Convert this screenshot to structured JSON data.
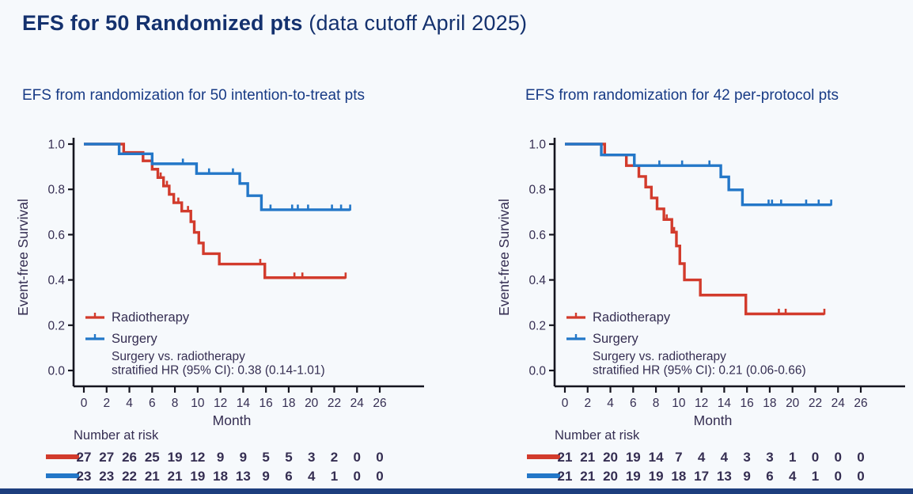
{
  "page": {
    "title_main": "EFS for 50 Randomized pts",
    "title_suffix": " (data cutoff April 2025)",
    "background_color": "#f6f9fc",
    "footer_bar_color": "#1d3e7e"
  },
  "colors": {
    "red": "#d23b2c",
    "blue": "#2377c8",
    "title_navy": "#14316e",
    "subtitle_navy": "#173a85",
    "plot_text": "#352e52",
    "axis": "#15151f"
  },
  "chart_data": [
    {
      "type": "line",
      "subtype": "kaplan-meier-step",
      "title": "EFS from randomization for 50 intention-to-treat pts",
      "xlabel": "Month",
      "ylabel": "Event-free Survival",
      "xlim": [
        0,
        26
      ],
      "ylim": [
        0.0,
        1.0
      ],
      "xticks": [
        0,
        2,
        4,
        6,
        8,
        10,
        12,
        14,
        16,
        18,
        20,
        22,
        24,
        26
      ],
      "yticks": [
        0.0,
        0.2,
        0.4,
        0.6,
        0.8,
        1.0
      ],
      "grid": false,
      "legend_position": "lower-left-inside",
      "legend": [
        {
          "name": "Radiotherapy",
          "color_key": "red"
        },
        {
          "name": "Surgery",
          "color_key": "blue"
        }
      ],
      "annotation_lines": [
        "Surgery vs. radiotherapy",
        "stratified HR (95% CI): 0.38 (0.14-1.01)"
      ],
      "series": [
        {
          "name": "Radiotherapy",
          "color_key": "red",
          "steps": [
            [
              0,
              1.0
            ],
            [
              3.5,
              0.963
            ],
            [
              5.2,
              0.926
            ],
            [
              6.0,
              0.889
            ],
            [
              6.5,
              0.852
            ],
            [
              7.0,
              0.815
            ],
            [
              7.5,
              0.778
            ],
            [
              7.9,
              0.741
            ],
            [
              8.6,
              0.704
            ],
            [
              9.4,
              0.657
            ],
            [
              9.7,
              0.61
            ],
            [
              10.1,
              0.563
            ],
            [
              10.5,
              0.516
            ],
            [
              11.9,
              0.47
            ],
            [
              15.9,
              0.41
            ]
          ],
          "end_month": 23.0,
          "censors": [
            [
              6.75,
              0.852
            ],
            [
              7.3,
              0.815
            ],
            [
              8.3,
              0.741
            ],
            [
              9.15,
              0.704
            ],
            [
              15.5,
              0.47
            ],
            [
              18.5,
              0.41
            ],
            [
              19.2,
              0.41
            ],
            [
              23.0,
              0.41
            ]
          ]
        },
        {
          "name": "Surgery",
          "color_key": "blue",
          "steps": [
            [
              0,
              1.0
            ],
            [
              3.1,
              0.957
            ],
            [
              6.0,
              0.913
            ],
            [
              9.9,
              0.87
            ],
            [
              13.7,
              0.826
            ],
            [
              14.4,
              0.772
            ],
            [
              15.6,
              0.71
            ]
          ],
          "end_month": 23.4,
          "censors": [
            [
              8.7,
              0.913
            ],
            [
              11.0,
              0.87
            ],
            [
              13.1,
              0.87
            ],
            [
              16.4,
              0.71
            ],
            [
              18.3,
              0.71
            ],
            [
              18.8,
              0.71
            ],
            [
              19.7,
              0.71
            ],
            [
              21.8,
              0.71
            ],
            [
              22.6,
              0.71
            ],
            [
              23.4,
              0.71
            ]
          ]
        }
      ],
      "number_at_risk": {
        "label": "Number at risk",
        "months": [
          0,
          2,
          4,
          6,
          8,
          10,
          12,
          14,
          16,
          18,
          20,
          22,
          24,
          26
        ],
        "rows": [
          {
            "name": "Radiotherapy",
            "color_key": "red",
            "values": [
              27,
              27,
              26,
              25,
              19,
              12,
              9,
              9,
              5,
              5,
              3,
              2,
              0,
              0
            ]
          },
          {
            "name": "Surgery",
            "color_key": "blue",
            "values": [
              23,
              23,
              22,
              21,
              21,
              19,
              18,
              13,
              9,
              6,
              4,
              1,
              0,
              0
            ]
          }
        ]
      }
    },
    {
      "type": "line",
      "subtype": "kaplan-meier-step",
      "title": "EFS from randomization for 42 per-protocol pts",
      "xlabel": "Month",
      "ylabel": "Event-free Survival",
      "xlim": [
        0,
        26
      ],
      "ylim": [
        0.0,
        1.0
      ],
      "xticks": [
        0,
        2,
        4,
        6,
        8,
        10,
        12,
        14,
        16,
        18,
        20,
        22,
        24,
        26
      ],
      "yticks": [
        0.0,
        0.2,
        0.4,
        0.6,
        0.8,
        1.0
      ],
      "grid": false,
      "legend_position": "lower-left-inside",
      "legend": [
        {
          "name": "Radiotherapy",
          "color_key": "red"
        },
        {
          "name": "Surgery",
          "color_key": "blue"
        }
      ],
      "annotation_lines": [
        "Surgery vs. radiotherapy",
        "stratified HR (95% CI): 0.21 (0.06-0.66)"
      ],
      "series": [
        {
          "name": "Radiotherapy",
          "color_key": "red",
          "steps": [
            [
              0,
              1.0
            ],
            [
              3.5,
              0.952
            ],
            [
              5.4,
              0.905
            ],
            [
              6.5,
              0.857
            ],
            [
              7.1,
              0.81
            ],
            [
              7.6,
              0.762
            ],
            [
              8.1,
              0.714
            ],
            [
              8.7,
              0.667
            ],
            [
              9.4,
              0.611
            ],
            [
              9.8,
              0.55
            ],
            [
              10.1,
              0.472
            ],
            [
              10.5,
              0.4
            ],
            [
              11.9,
              0.333
            ],
            [
              15.9,
              0.25
            ]
          ],
          "end_month": 22.8,
          "censors": [
            [
              8.95,
              0.667
            ],
            [
              9.6,
              0.611
            ],
            [
              18.8,
              0.25
            ],
            [
              19.4,
              0.25
            ],
            [
              22.8,
              0.25
            ]
          ]
        },
        {
          "name": "Surgery",
          "color_key": "blue",
          "steps": [
            [
              0,
              1.0
            ],
            [
              3.2,
              0.952
            ],
            [
              6.1,
              0.905
            ],
            [
              13.7,
              0.855
            ],
            [
              14.4,
              0.798
            ],
            [
              15.6,
              0.732
            ]
          ],
          "end_month": 23.4,
          "censors": [
            [
              8.3,
              0.905
            ],
            [
              10.3,
              0.905
            ],
            [
              12.7,
              0.905
            ],
            [
              17.9,
              0.732
            ],
            [
              18.2,
              0.732
            ],
            [
              19.0,
              0.732
            ],
            [
              21.2,
              0.732
            ],
            [
              22.3,
              0.732
            ],
            [
              23.4,
              0.732
            ]
          ]
        }
      ],
      "number_at_risk": {
        "label": "Number at risk",
        "months": [
          0,
          2,
          4,
          6,
          8,
          10,
          12,
          14,
          16,
          18,
          20,
          22,
          24,
          26
        ],
        "rows": [
          {
            "name": "Radiotherapy",
            "color_key": "red",
            "values": [
              21,
              21,
              20,
              19,
              14,
              7,
              4,
              4,
              3,
              3,
              1,
              0,
              0,
              0
            ]
          },
          {
            "name": "Surgery",
            "color_key": "blue",
            "values": [
              21,
              21,
              20,
              19,
              19,
              18,
              17,
              13,
              9,
              6,
              4,
              1,
              0,
              0
            ]
          }
        ]
      }
    }
  ]
}
